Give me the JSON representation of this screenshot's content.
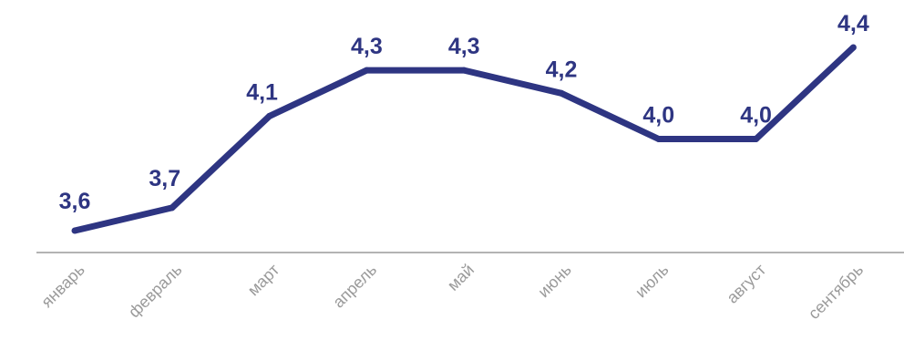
{
  "chart_data": {
    "type": "line",
    "title": "",
    "xlabel": "",
    "ylabel": "",
    "categories": [
      "январь",
      "февраль",
      "март",
      "апрель",
      "май",
      "июнь",
      "июль",
      "август",
      "сентябрь"
    ],
    "values": [
      3.6,
      3.7,
      4.1,
      4.3,
      4.3,
      4.2,
      4.0,
      4.0,
      4.4
    ],
    "data_labels": [
      "3,6",
      "3,7",
      "4,1",
      "4,3",
      "4,3",
      "4,2",
      "4,0",
      "4,0",
      "4,4"
    ],
    "ylim": [
      3.5,
      4.6
    ],
    "grid": false,
    "legend": "none",
    "colors": {
      "line": "#2e3582",
      "labels": "#2e3582",
      "tick_labels": "#9a9a9a",
      "axis": "#9a9a9a"
    }
  }
}
